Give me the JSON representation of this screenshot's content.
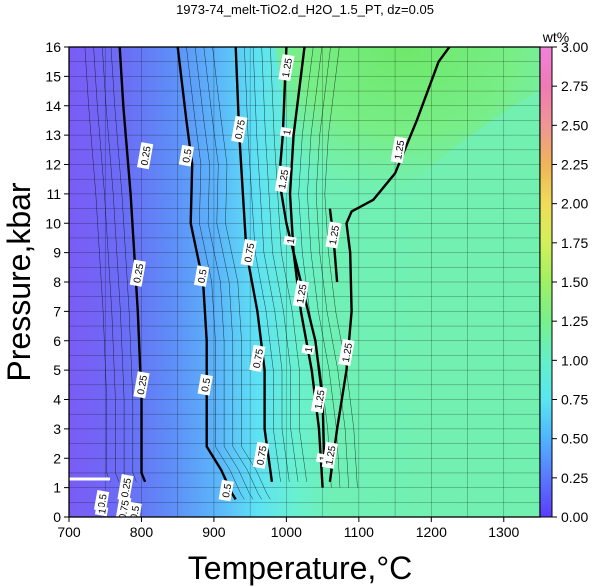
{
  "chart_data": {
    "type": "heatmap",
    "title": "1973-74_melt-TiO2.d_H2O_1.5_PT, dz=0.05",
    "xlabel": "Temperature,°C",
    "ylabel": "Pressure,kbar",
    "xlim": [
      700,
      1350
    ],
    "ylim": [
      0,
      16
    ],
    "xticks": [
      700,
      800,
      900,
      1000,
      1100,
      1200,
      1300
    ],
    "yticks": [
      0,
      1,
      2,
      3,
      4,
      5,
      6,
      7,
      8,
      9,
      10,
      11,
      12,
      13,
      14,
      15,
      16
    ],
    "grid": true,
    "colorbar": {
      "label": "wt%",
      "min": 0.0,
      "max": 3.0,
      "ticks": [
        "0.00",
        "0.25",
        "0.50",
        "0.75",
        "1.00",
        "1.25",
        "1.50",
        "1.75",
        "2.00",
        "2.25",
        "2.50",
        "2.75",
        "3.00"
      ],
      "colors": [
        "#5a3cff",
        "#5a78ff",
        "#50b4ff",
        "#5ae6f0",
        "#64f0c8",
        "#78f08c",
        "#a0f064",
        "#d2f05a",
        "#f0dc5a",
        "#f0b45a",
        "#f09696",
        "#f07ab4",
        "#f082dc"
      ]
    },
    "contours": [
      {
        "level": "0.25",
        "points": [
          [
            770,
            16
          ],
          [
            775,
            14
          ],
          [
            785,
            11
          ],
          [
            790,
            9
          ],
          [
            795,
            7
          ],
          [
            800,
            4
          ],
          [
            800,
            1.5
          ],
          [
            805,
            1.2
          ]
        ]
      },
      {
        "level": "0.5",
        "points": [
          [
            850,
            16
          ],
          [
            862,
            13.5
          ],
          [
            870,
            12
          ],
          [
            868,
            10
          ],
          [
            885,
            8
          ],
          [
            890,
            6
          ],
          [
            890,
            2.4
          ],
          [
            910,
            1.6
          ],
          [
            925,
            0.8
          ],
          [
            930,
            0.6
          ]
        ]
      },
      {
        "level": "0.75",
        "points": [
          [
            930,
            16
          ],
          [
            935,
            13
          ],
          [
            940,
            11
          ],
          [
            945,
            9
          ],
          [
            960,
            7
          ],
          [
            970,
            5
          ],
          [
            970,
            3
          ],
          [
            980,
            1.2
          ]
        ]
      },
      {
        "level": "1",
        "points": [
          [
            1025,
            16
          ],
          [
            1010,
            13
          ],
          [
            1005,
            11
          ],
          [
            1010,
            9
          ],
          [
            1020,
            7
          ],
          [
            1035,
            5
          ],
          [
            1045,
            3
          ],
          [
            1050,
            1
          ]
        ]
      },
      {
        "level": "1.25",
        "points": [
          [
            1060,
            1.2
          ],
          [
            1070,
            3
          ],
          [
            1083,
            5
          ],
          [
            1090,
            7
          ],
          [
            1088,
            9
          ],
          [
            1083,
            10
          ],
          [
            1090,
            10.4
          ],
          [
            1120,
            10.8
          ],
          [
            1150,
            11.7
          ],
          [
            1180,
            13.5
          ],
          [
            1210,
            15.5
          ],
          [
            1225,
            16
          ]
        ]
      },
      {
        "level": "1.25",
        "points": [
          [
            1000,
            16
          ],
          [
            995,
            13
          ],
          [
            990,
            11.5
          ],
          [
            1000,
            10
          ],
          [
            1020,
            8
          ],
          [
            1040,
            6
          ],
          [
            1050,
            4
          ],
          [
            1052,
            2
          ]
        ]
      },
      {
        "level": "1.25",
        "points": [
          [
            1060,
            10.5
          ],
          [
            1065,
            9.5
          ],
          [
            1070,
            8
          ]
        ]
      }
    ],
    "labels": [
      {
        "text": "0.25",
        "x": 805,
        "y": 12.3
      },
      {
        "text": "0.25",
        "x": 795,
        "y": 8.3
      },
      {
        "text": "0.25",
        "x": 800,
        "y": 4.5
      },
      {
        "text": "0.25",
        "x": 778,
        "y": 1.0
      },
      {
        "text": "0.5",
        "x": 862,
        "y": 12.3
      },
      {
        "text": "0.5",
        "x": 883,
        "y": 8.2
      },
      {
        "text": "0.5",
        "x": 888,
        "y": 4.5
      },
      {
        "text": "0.5",
        "x": 917,
        "y": 0.9
      },
      {
        "text": "0.5",
        "x": 745,
        "y": 0.55
      },
      {
        "text": "0.5",
        "x": 790,
        "y": 0.15
      },
      {
        "text": "0.75",
        "x": 935,
        "y": 13.2
      },
      {
        "text": "0.75",
        "x": 948,
        "y": 9.0
      },
      {
        "text": "0.75",
        "x": 960,
        "y": 5.4
      },
      {
        "text": "0.75",
        "x": 965,
        "y": 2.1
      },
      {
        "text": "0.75",
        "x": 775,
        "y": 0.25
      },
      {
        "text": "1",
        "x": 1000,
        "y": 13.1
      },
      {
        "text": "1",
        "x": 1005,
        "y": 9.4
      },
      {
        "text": "1",
        "x": 1030,
        "y": 5.7
      },
      {
        "text": "1",
        "x": 1050,
        "y": 2.0
      },
      {
        "text": "1",
        "x": 745,
        "y": 0.2
      },
      {
        "text": "1.25",
        "x": 1000,
        "y": 15.3
      },
      {
        "text": "1.25",
        "x": 995,
        "y": 11.5
      },
      {
        "text": "1.25",
        "x": 1020,
        "y": 7.6
      },
      {
        "text": "1.25",
        "x": 1045,
        "y": 4.0
      },
      {
        "text": "1.25",
        "x": 1065,
        "y": 9.6
      },
      {
        "text": "1.25",
        "x": 1083,
        "y": 5.6
      },
      {
        "text": "1.25",
        "x": 1060,
        "y": 2.1
      },
      {
        "text": "1.25",
        "x": 1155,
        "y": 12.5
      }
    ]
  }
}
